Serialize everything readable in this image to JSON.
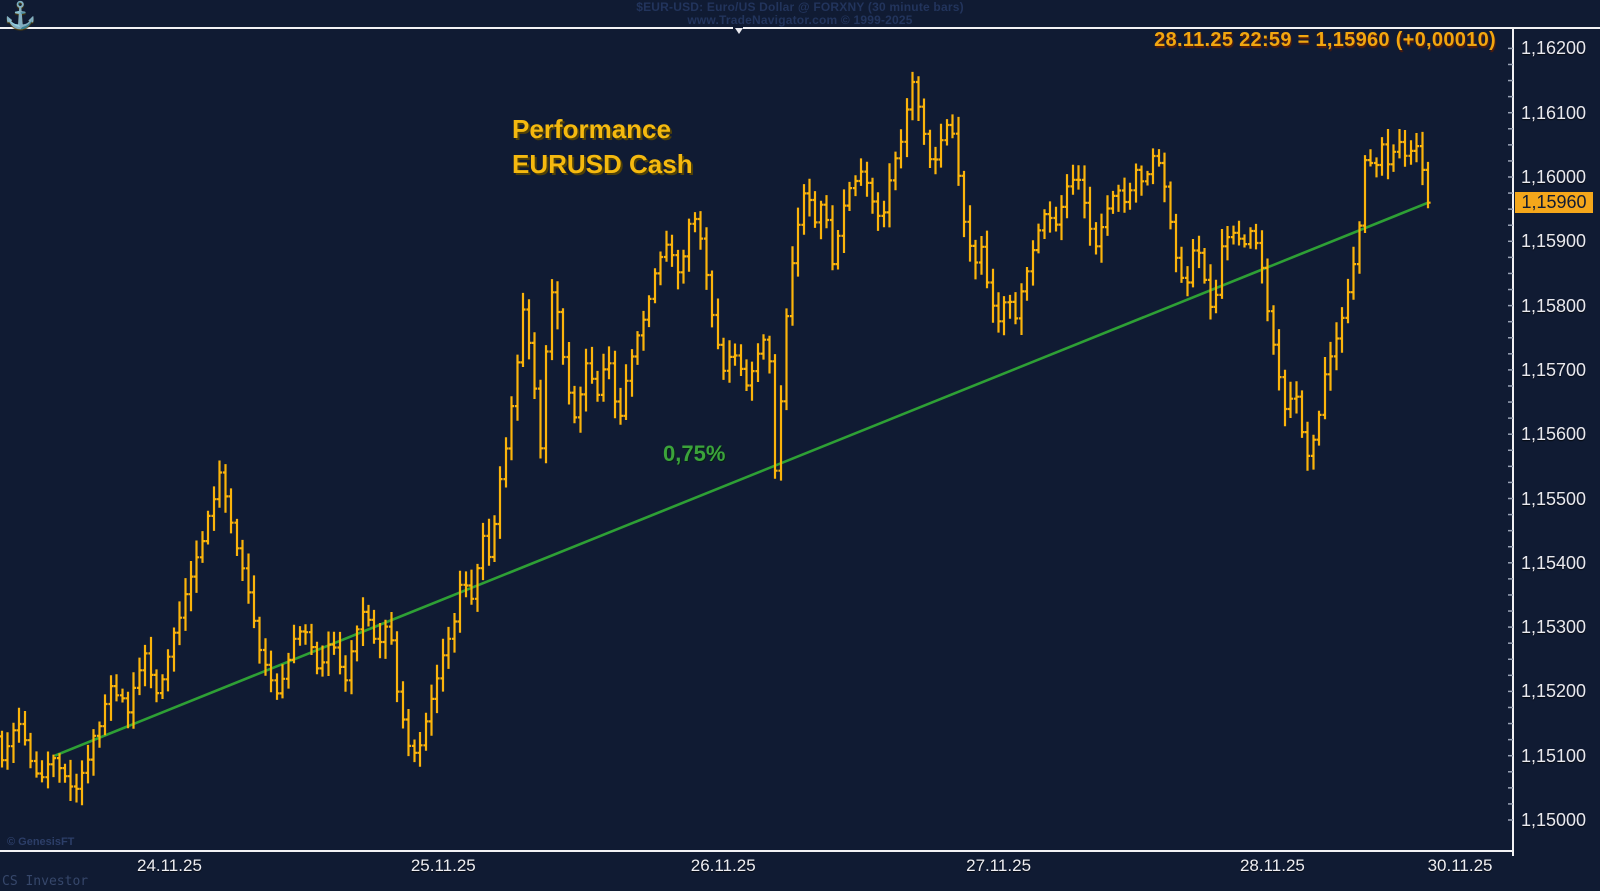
{
  "header": {
    "line1": "$EUR-USD:  Euro/US Dollar @ FORXNY  (30 minute bars)",
    "line2": "www.TradeNavigator.com © 1999-2025"
  },
  "quote": {
    "text": "28.11.25 22:59 = 1,15960 (+0,00010)"
  },
  "annotations": {
    "performance_line1": "Performance",
    "performance_line2": "EURUSD Cash",
    "trend_label": "0,75%"
  },
  "watermarks": {
    "genesis": "© GenesisFT",
    "investor": "CS Investor"
  },
  "price_tag": "1,15960",
  "logo_glyph": "⚓",
  "colors": {
    "background": "#101B33",
    "bar": "#FBB40B",
    "trend_line": "#2EA035",
    "axis": "#FFFFFF",
    "label_text": "#E9E9EF",
    "quote_text": "#F2A60F",
    "header_text": "#22345C",
    "price_tag_bg": "#F4A71B",
    "trend_label_text": "#3BA33B"
  },
  "chart_data": {
    "type": "bar",
    "subtype": "ohlc-bars",
    "symbol": "$EUR-USD",
    "market": "FORXNY",
    "interval": "30 minute bars",
    "title": "Performance EURUSD Cash",
    "last_quote": {
      "date": "28.11.25",
      "time": "22:59",
      "price": 1.1596,
      "change": 0.0001
    },
    "y_axis": {
      "min": 1.15,
      "max": 1.162,
      "major_step": 0.001,
      "minor_step": 0.00025,
      "labels": [
        "1,16200",
        "1,16100",
        "1,16000",
        "1,15900",
        "1,15800",
        "1,15700",
        "1,15600",
        "1,15500",
        "1,15400",
        "1,15300",
        "1,15200",
        "1,15100",
        "1,15000"
      ]
    },
    "x_axis": {
      "labels": [
        {
          "label": "24.11.25",
          "f": 0.112
        },
        {
          "label": "25.11.25",
          "f": 0.293
        },
        {
          "label": "26.11.25",
          "f": 0.478
        },
        {
          "label": "27.11.25",
          "f": 0.66
        },
        {
          "label": "28.11.25",
          "f": 0.841
        },
        {
          "label": "30.11.25",
          "f": 0.965
        }
      ]
    },
    "trend_line": {
      "f1": 0.037,
      "price1": 1.151,
      "f2": 1.0,
      "price2": 1.1596,
      "label": "0,75%",
      "percent": 0.75
    },
    "bar_count": 250,
    "price_path": [
      [
        0.0,
        1.1509
      ],
      [
        0.011,
        1.1516
      ],
      [
        0.025,
        1.1506
      ],
      [
        0.037,
        1.151
      ],
      [
        0.051,
        1.1504
      ],
      [
        0.065,
        1.1513
      ],
      [
        0.077,
        1.1521
      ],
      [
        0.088,
        1.1517
      ],
      [
        0.1,
        1.1526
      ],
      [
        0.109,
        1.1519
      ],
      [
        0.119,
        1.1528
      ],
      [
        0.13,
        1.1536
      ],
      [
        0.142,
        1.1545
      ],
      [
        0.153,
        1.1554
      ],
      [
        0.161,
        1.1546
      ],
      [
        0.17,
        1.1538
      ],
      [
        0.18,
        1.1527
      ],
      [
        0.187,
        1.1522
      ],
      [
        0.194,
        1.1519
      ],
      [
        0.203,
        1.1527
      ],
      [
        0.212,
        1.153
      ],
      [
        0.222,
        1.1523
      ],
      [
        0.231,
        1.1528
      ],
      [
        0.24,
        1.1521
      ],
      [
        0.248,
        1.1529
      ],
      [
        0.255,
        1.1533
      ],
      [
        0.263,
        1.1526
      ],
      [
        0.271,
        1.1531
      ],
      [
        0.278,
        1.1519
      ],
      [
        0.285,
        1.1512
      ],
      [
        0.292,
        1.151
      ],
      [
        0.299,
        1.1517
      ],
      [
        0.307,
        1.1524
      ],
      [
        0.316,
        1.153
      ],
      [
        0.323,
        1.1538
      ],
      [
        0.33,
        1.1534
      ],
      [
        0.337,
        1.1544
      ],
      [
        0.342,
        1.154
      ],
      [
        0.349,
        1.1552
      ],
      [
        0.358,
        1.1565
      ],
      [
        0.366,
        1.158
      ],
      [
        0.372,
        1.157
      ],
      [
        0.378,
        1.1557
      ],
      [
        0.384,
        1.1584
      ],
      [
        0.39,
        1.1578
      ],
      [
        0.396,
        1.1568
      ],
      [
        0.402,
        1.1562
      ],
      [
        0.409,
        1.1571
      ],
      [
        0.417,
        1.1566
      ],
      [
        0.425,
        1.1572
      ],
      [
        0.432,
        1.1561
      ],
      [
        0.44,
        1.1571
      ],
      [
        0.45,
        1.1578
      ],
      [
        0.458,
        1.1585
      ],
      [
        0.467,
        1.159
      ],
      [
        0.475,
        1.1584
      ],
      [
        0.484,
        1.1596
      ],
      [
        0.491,
        1.1589
      ],
      [
        0.498,
        1.1578
      ],
      [
        0.505,
        1.157
      ],
      [
        0.513,
        1.1573
      ],
      [
        0.522,
        1.1567
      ],
      [
        0.53,
        1.1572
      ],
      [
        0.537,
        1.1576
      ],
      [
        0.543,
        1.1551
      ],
      [
        0.548,
        1.1574
      ],
      [
        0.555,
        1.1588
      ],
      [
        0.564,
        1.16
      ],
      [
        0.569,
        1.1592
      ],
      [
        0.576,
        1.1597
      ],
      [
        0.582,
        1.1586
      ],
      [
        0.589,
        1.1594
      ],
      [
        0.596,
        1.1599
      ],
      [
        0.603,
        1.1601
      ],
      [
        0.61,
        1.1596
      ],
      [
        0.617,
        1.1593
      ],
      [
        0.624,
        1.1601
      ],
      [
        0.631,
        1.1606
      ],
      [
        0.638,
        1.1615
      ],
      [
        0.645,
        1.1609
      ],
      [
        0.652,
        1.1601
      ],
      [
        0.659,
        1.1606
      ],
      [
        0.665,
        1.1609
      ],
      [
        0.67,
        1.1601
      ],
      [
        0.676,
        1.1591
      ],
      [
        0.682,
        1.1586
      ],
      [
        0.687,
        1.1589
      ],
      [
        0.693,
        1.1581
      ],
      [
        0.698,
        1.1577
      ],
      [
        0.705,
        1.1582
      ],
      [
        0.711,
        1.1578
      ],
      [
        0.718,
        1.1585
      ],
      [
        0.725,
        1.1591
      ],
      [
        0.732,
        1.1595
      ],
      [
        0.739,
        1.1592
      ],
      [
        0.746,
        1.1598
      ],
      [
        0.753,
        1.1601
      ],
      [
        0.76,
        1.1595
      ],
      [
        0.767,
        1.1589
      ],
      [
        0.774,
        1.1594
      ],
      [
        0.781,
        1.1599
      ],
      [
        0.788,
        1.1596
      ],
      [
        0.795,
        1.1601
      ],
      [
        0.802,
        1.1599
      ],
      [
        0.809,
        1.1605
      ],
      [
        0.816,
        1.1598
      ],
      [
        0.823,
        1.1588
      ],
      [
        0.83,
        1.1582
      ],
      [
        0.837,
        1.159
      ],
      [
        0.843,
        1.1585
      ],
      [
        0.849,
        1.1578
      ],
      [
        0.856,
        1.159
      ],
      [
        0.863,
        1.1592
      ],
      [
        0.87,
        1.1589
      ],
      [
        0.877,
        1.1592
      ],
      [
        0.884,
        1.1585
      ],
      [
        0.889,
        1.1577
      ],
      [
        0.895,
        1.157
      ],
      [
        0.9,
        1.1563
      ],
      [
        0.906,
        1.1568
      ],
      [
        0.912,
        1.156
      ],
      [
        0.917,
        1.1556
      ],
      [
        0.923,
        1.1562
      ],
      [
        0.928,
        1.157
      ],
      [
        0.934,
        1.1574
      ],
      [
        0.94,
        1.1578
      ],
      [
        0.945,
        1.1584
      ],
      [
        0.951,
        1.159
      ],
      [
        0.957,
        1.1605
      ],
      [
        0.962,
        1.16
      ],
      [
        0.968,
        1.1605
      ],
      [
        0.973,
        1.1601
      ],
      [
        0.979,
        1.1606
      ],
      [
        0.985,
        1.1602
      ],
      [
        0.99,
        1.1606
      ],
      [
        0.995,
        1.1603
      ],
      [
        1.0,
        1.1596
      ]
    ]
  }
}
